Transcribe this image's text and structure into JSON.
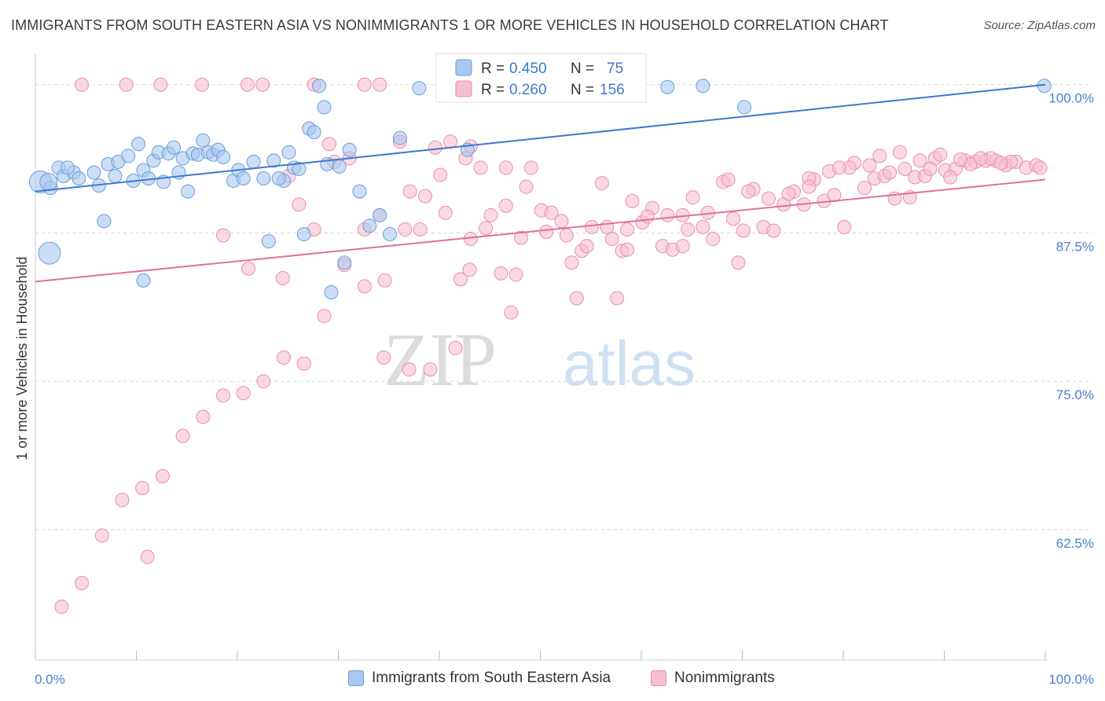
{
  "header": {
    "title": "IMMIGRANTS FROM SOUTH EASTERN ASIA VS NONIMMIGRANTS 1 OR MORE VEHICLES IN HOUSEHOLD CORRELATION CHART",
    "source": "Source: ZipAtlas.com"
  },
  "watermark": {
    "part1": "ZIP",
    "part2": "atlas"
  },
  "colors": {
    "blue_fill": "#a9c8f0",
    "blue_stroke": "#6a9fd8",
    "blue_line": "#3f78cf",
    "pink_fill": "#f6bfd0",
    "pink_stroke": "#ea8fae",
    "pink_line": "#e0709a",
    "tick_label": "#4a7fcf",
    "grid": "#d5d5d5"
  },
  "legend": {
    "r_label": "R =",
    "n_label": "N =",
    "entries": [
      {
        "r": "0.450",
        "n": "75"
      },
      {
        "r": "0.260",
        "n": "156"
      }
    ]
  },
  "bottom_legend": [
    "Immigrants from South Eastern Asia",
    "Nonimmigrants"
  ],
  "chart_data": {
    "type": "scatter",
    "xlabel": "",
    "ylabel": "1 or more Vehicles in Household",
    "xlim": [
      0,
      100
    ],
    "ylim": [
      51.5,
      102.5
    ],
    "x_tick_labels": [
      "0.0%",
      "100.0%"
    ],
    "y_ticks": [
      100.0,
      87.5,
      75.0,
      62.5
    ],
    "y_tick_labels": [
      "100.0%",
      "87.5%",
      "75.0%",
      "62.5%"
    ],
    "grid": "horizontal dashed",
    "series": [
      {
        "name": "Immigrants from South Eastern Asia",
        "trend": [
          [
            0,
            91.0
          ],
          [
            100,
            100.0
          ]
        ],
        "points": [
          [
            0.5,
            91.8,
            3
          ],
          [
            1.5,
            91.3,
            1
          ],
          [
            2.3,
            93.0,
            1
          ],
          [
            2.8,
            92.3,
            1
          ],
          [
            3.8,
            92.6,
            1
          ],
          [
            4.3,
            92.1,
            1
          ],
          [
            5.8,
            92.6,
            1
          ],
          [
            6.3,
            91.5,
            1
          ],
          [
            6.8,
            88.5,
            1
          ],
          [
            7.2,
            93.3,
            1
          ],
          [
            8.2,
            93.5,
            1
          ],
          [
            7.9,
            92.3,
            1
          ],
          [
            9.2,
            94.0,
            1
          ],
          [
            9.7,
            91.9,
            1
          ],
          [
            10.2,
            95.0,
            1
          ],
          [
            10.7,
            92.8,
            1
          ],
          [
            11.2,
            92.1,
            1
          ],
          [
            11.7,
            93.6,
            1
          ],
          [
            12.2,
            94.3,
            1
          ],
          [
            12.7,
            91.8,
            1
          ],
          [
            13.2,
            94.2,
            1
          ],
          [
            13.7,
            94.7,
            1
          ],
          [
            14.2,
            92.6,
            1
          ],
          [
            14.6,
            93.8,
            1
          ],
          [
            15.1,
            91.0,
            1
          ],
          [
            15.6,
            94.2,
            1
          ],
          [
            16.1,
            94.1,
            1
          ],
          [
            16.6,
            95.3,
            1
          ],
          [
            17.1,
            94.3,
            1
          ],
          [
            17.6,
            94.1,
            1
          ],
          [
            18.1,
            94.5,
            1
          ],
          [
            18.6,
            93.9,
            1
          ],
          [
            19.6,
            91.9,
            1
          ],
          [
            20.1,
            92.8,
            1
          ],
          [
            20.6,
            92.1,
            1
          ],
          [
            21.6,
            93.5,
            1
          ],
          [
            22.6,
            92.1,
            1
          ],
          [
            23.6,
            93.6,
            1
          ],
          [
            24.6,
            91.9,
            1
          ],
          [
            24.1,
            92.1,
            1
          ],
          [
            25.1,
            94.3,
            1
          ],
          [
            25.6,
            93.0,
            1
          ],
          [
            26.1,
            92.9,
            1
          ],
          [
            26.6,
            87.4,
            1
          ],
          [
            27.1,
            96.3,
            1
          ],
          [
            27.6,
            96.0,
            1
          ],
          [
            28.1,
            99.9,
            1
          ],
          [
            28.6,
            98.1,
            1
          ],
          [
            28.9,
            93.3,
            1
          ],
          [
            30.1,
            93.1,
            1
          ],
          [
            31.1,
            94.5,
            1
          ],
          [
            32.1,
            91.0,
            1
          ],
          [
            33.1,
            88.1,
            1
          ],
          [
            34.1,
            89.0,
            1
          ],
          [
            35.1,
            87.4,
            1
          ],
          [
            36.1,
            95.5,
            1
          ],
          [
            23.1,
            86.8,
            1
          ],
          [
            30.6,
            85.0,
            1
          ],
          [
            29.3,
            82.5,
            1
          ],
          [
            1.4,
            85.8,
            3
          ],
          [
            10.7,
            83.5,
            1
          ],
          [
            42.8,
            94.5,
            1
          ],
          [
            55.1,
            99.9,
            1
          ],
          [
            62.6,
            99.8,
            1
          ],
          [
            66.1,
            99.9,
            1
          ],
          [
            70.2,
            98.1,
            1
          ],
          [
            99.9,
            99.9,
            1
          ],
          [
            38.0,
            99.7,
            1
          ],
          [
            3.2,
            93.0,
            1
          ],
          [
            1.3,
            91.8,
            2
          ]
        ]
      },
      {
        "name": "Nonimmigrants",
        "trend": [
          [
            0,
            83.4
          ],
          [
            100,
            92.0
          ]
        ],
        "points": [
          [
            4.6,
            100,
            1
          ],
          [
            9.0,
            100,
            1
          ],
          [
            12.4,
            100,
            1
          ],
          [
            16.5,
            100,
            1
          ],
          [
            21.0,
            100,
            1
          ],
          [
            22.5,
            100,
            1
          ],
          [
            27.6,
            100,
            1
          ],
          [
            32.6,
            100,
            1
          ],
          [
            34.1,
            100,
            1
          ],
          [
            25.1,
            92.3,
            1
          ],
          [
            26.1,
            89.9,
            1
          ],
          [
            27.6,
            87.8,
            1
          ],
          [
            18.6,
            87.3,
            1
          ],
          [
            21.1,
            84.5,
            1
          ],
          [
            24.5,
            83.7,
            1
          ],
          [
            29.1,
            95.0,
            1
          ],
          [
            29.6,
            93.5,
            1
          ],
          [
            31.1,
            93.8,
            1
          ],
          [
            32.6,
            87.8,
            1
          ],
          [
            34.1,
            89.0,
            1
          ],
          [
            36.1,
            95.2,
            1
          ],
          [
            37.1,
            91.0,
            1
          ],
          [
            38.1,
            87.8,
            1
          ],
          [
            39.6,
            94.7,
            1
          ],
          [
            40.1,
            92.4,
            1
          ],
          [
            41.1,
            95.2,
            1
          ],
          [
            42.1,
            83.6,
            1
          ],
          [
            43.1,
            87.0,
            1
          ],
          [
            44.1,
            93.0,
            1
          ],
          [
            45.1,
            89.0,
            1
          ],
          [
            46.1,
            84.1,
            1
          ],
          [
            47.1,
            80.8,
            1
          ],
          [
            48.1,
            87.1,
            1
          ],
          [
            49.1,
            93.0,
            1
          ],
          [
            50.1,
            89.4,
            1
          ],
          [
            51.1,
            89.2,
            1
          ],
          [
            52.1,
            88.5,
            1
          ],
          [
            53.1,
            85.0,
            1
          ],
          [
            54.1,
            86.0,
            1
          ],
          [
            55.1,
            88.0,
            1
          ],
          [
            56.1,
            91.7,
            1
          ],
          [
            57.1,
            87.0,
            1
          ],
          [
            58.1,
            86.0,
            1
          ],
          [
            59.1,
            90.2,
            1
          ],
          [
            60.1,
            88.4,
            1
          ],
          [
            61.1,
            89.6,
            1
          ],
          [
            62.1,
            86.4,
            1
          ],
          [
            63.1,
            86.1,
            1
          ],
          [
            64.1,
            89.0,
            1
          ],
          [
            65.1,
            90.5,
            1
          ],
          [
            66.1,
            88.0,
            1
          ],
          [
            67.1,
            87.0,
            1
          ],
          [
            68.1,
            91.8,
            1
          ],
          [
            69.1,
            88.7,
            1
          ],
          [
            70.1,
            87.7,
            1
          ],
          [
            71.1,
            91.2,
            1
          ],
          [
            72.1,
            88.0,
            1
          ],
          [
            73.1,
            87.7,
            1
          ],
          [
            74.1,
            89.9,
            1
          ],
          [
            75.1,
            91.0,
            1
          ],
          [
            76.1,
            89.9,
            1
          ],
          [
            77.1,
            92.0,
            1
          ],
          [
            78.1,
            90.2,
            1
          ],
          [
            79.1,
            90.7,
            1
          ],
          [
            80.1,
            88.0,
            1
          ],
          [
            81.1,
            93.4,
            1
          ],
          [
            82.1,
            91.3,
            1
          ],
          [
            83.1,
            92.1,
            1
          ],
          [
            84.1,
            92.3,
            1
          ],
          [
            85.1,
            90.4,
            1
          ],
          [
            86.1,
            92.9,
            1
          ],
          [
            87.1,
            92.2,
            1
          ],
          [
            88.1,
            92.3,
            1
          ],
          [
            89.1,
            93.8,
            1
          ],
          [
            90.1,
            92.8,
            1
          ],
          [
            91.1,
            92.9,
            1
          ],
          [
            92.1,
            93.6,
            1
          ],
          [
            93.1,
            93.5,
            1
          ],
          [
            94.1,
            93.6,
            1
          ],
          [
            95.1,
            93.6,
            1
          ],
          [
            96.1,
            93.2,
            1
          ],
          [
            97.1,
            93.5,
            1
          ],
          [
            98.1,
            93.0,
            1
          ],
          [
            99.1,
            93.2,
            1
          ],
          [
            99.5,
            93.0,
            1
          ],
          [
            96.6,
            93.5,
            1
          ],
          [
            94.6,
            93.8,
            1
          ],
          [
            92.6,
            93.3,
            1
          ],
          [
            90.6,
            92.2,
            1
          ],
          [
            88.6,
            92.9,
            1
          ],
          [
            86.6,
            90.5,
            1
          ],
          [
            84.6,
            92.6,
            1
          ],
          [
            82.6,
            93.2,
            1
          ],
          [
            80.6,
            93.0,
            1
          ],
          [
            78.6,
            92.7,
            1
          ],
          [
            76.6,
            92.1,
            1
          ],
          [
            74.6,
            90.8,
            1
          ],
          [
            72.6,
            90.4,
            1
          ],
          [
            70.6,
            91.0,
            1
          ],
          [
            68.6,
            92.0,
            1
          ],
          [
            66.6,
            89.2,
            1
          ],
          [
            64.6,
            87.8,
            1
          ],
          [
            62.6,
            89.0,
            1
          ],
          [
            60.6,
            88.9,
            1
          ],
          [
            58.6,
            87.8,
            1
          ],
          [
            56.6,
            88.0,
            1
          ],
          [
            54.6,
            86.4,
            1
          ],
          [
            52.6,
            87.3,
            1
          ],
          [
            50.6,
            87.6,
            1
          ],
          [
            48.6,
            91.4,
            1
          ],
          [
            46.6,
            89.8,
            1
          ],
          [
            44.6,
            87.9,
            1
          ],
          [
            42.6,
            93.8,
            1
          ],
          [
            40.6,
            89.2,
            1
          ],
          [
            38.6,
            90.6,
            1
          ],
          [
            36.6,
            87.8,
            1
          ],
          [
            34.6,
            83.5,
            1
          ],
          [
            32.6,
            83.0,
            1
          ],
          [
            30.6,
            84.8,
            1
          ],
          [
            28.6,
            80.5,
            1
          ],
          [
            26.6,
            76.5,
            1
          ],
          [
            24.6,
            77.0,
            1
          ],
          [
            22.6,
            75.0,
            1
          ],
          [
            20.6,
            74.0,
            1
          ],
          [
            18.6,
            73.8,
            1
          ],
          [
            16.6,
            72.0,
            1
          ],
          [
            14.6,
            70.4,
            1
          ],
          [
            12.6,
            67.0,
            1
          ],
          [
            10.6,
            66.0,
            1
          ],
          [
            8.6,
            65.0,
            1
          ],
          [
            6.6,
            62.0,
            1
          ],
          [
            4.6,
            58.0,
            1
          ],
          [
            2.6,
            56.0,
            1
          ],
          [
            43.1,
            94.8,
            1
          ],
          [
            46.6,
            93.0,
            1
          ],
          [
            11.1,
            60.2,
            1
          ],
          [
            34.5,
            77.0,
            1
          ],
          [
            37.0,
            76.0,
            1
          ],
          [
            41.6,
            77.8,
            1
          ],
          [
            39.1,
            76.0,
            1
          ],
          [
            43.0,
            84.4,
            1
          ],
          [
            47.6,
            84.0,
            1
          ],
          [
            53.6,
            82.0,
            1
          ],
          [
            57.6,
            82.0,
            1
          ],
          [
            58.6,
            86.1,
            1
          ],
          [
            69.6,
            85.0,
            1
          ],
          [
            64.1,
            86.4,
            1
          ],
          [
            79.6,
            93.0,
            1
          ],
          [
            76.6,
            91.4,
            1
          ],
          [
            83.6,
            94.0,
            1
          ],
          [
            85.6,
            94.3,
            1
          ],
          [
            87.6,
            93.6,
            1
          ],
          [
            89.6,
            94.1,
            1
          ],
          [
            91.6,
            93.7,
            1
          ],
          [
            93.6,
            93.8,
            1
          ],
          [
            95.6,
            93.4,
            1
          ]
        ]
      }
    ]
  }
}
